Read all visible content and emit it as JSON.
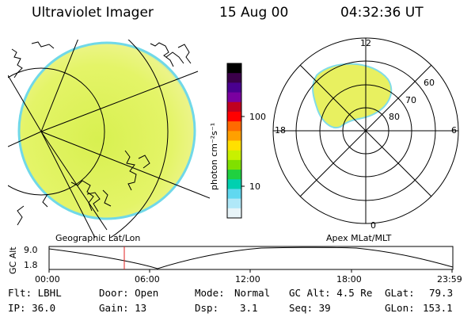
{
  "header": {
    "instrument": "Ultraviolet Imager",
    "date": "15 Aug 00",
    "time": "04:32:36 UT"
  },
  "colorbar": {
    "unit_label": "photon cm⁻²s⁻¹",
    "ticks": [
      "100",
      "10"
    ],
    "colors": [
      "#000000",
      "#3a004a",
      "#4a0090",
      "#7a00a0",
      "#c00020",
      "#ff0000",
      "#ff6a00",
      "#ffa000",
      "#ffe000",
      "#c8f000",
      "#80e000",
      "#20d040",
      "#00d0b0",
      "#60d8f0",
      "#b0e8f8",
      "#e8f4f8"
    ]
  },
  "geo_panel": {
    "label": "Geographic Lat/Lon",
    "fill_color": "#e0f060",
    "edge_color": "#70d8e8"
  },
  "polar_panel": {
    "label": "Apex MLat/MLT",
    "mlt_labels": {
      "top": "12",
      "left": "18",
      "right": "6",
      "bottom": "0"
    },
    "lat_labels": [
      "60",
      "70",
      "80"
    ],
    "aurora_color": "#e8f060"
  },
  "altitude_plot": {
    "ylabel": "GC Alt",
    "yticks": [
      "9.0",
      "1.8"
    ],
    "xticks": [
      "00:00",
      "06:00",
      "12:00",
      "18:00",
      "23:59"
    ],
    "marker_color": "#e02020"
  },
  "info": {
    "row1": {
      "flt": "Flt: LBHL",
      "door": "Door: Open",
      "mode_label": "Mode:",
      "mode_value": "Normal",
      "gc_alt": "GC Alt: 4.5 Re",
      "glat_label": "GLat:",
      "glat_value": "79.3"
    },
    "row2": {
      "ip": "IP: 36.0",
      "gain": "Gain: 13",
      "dsp_label": "Dsp:",
      "dsp_value": "3.1",
      "seq": "Seq: 39",
      "glon_label": "GLon:",
      "glon_value": "153.1"
    }
  }
}
